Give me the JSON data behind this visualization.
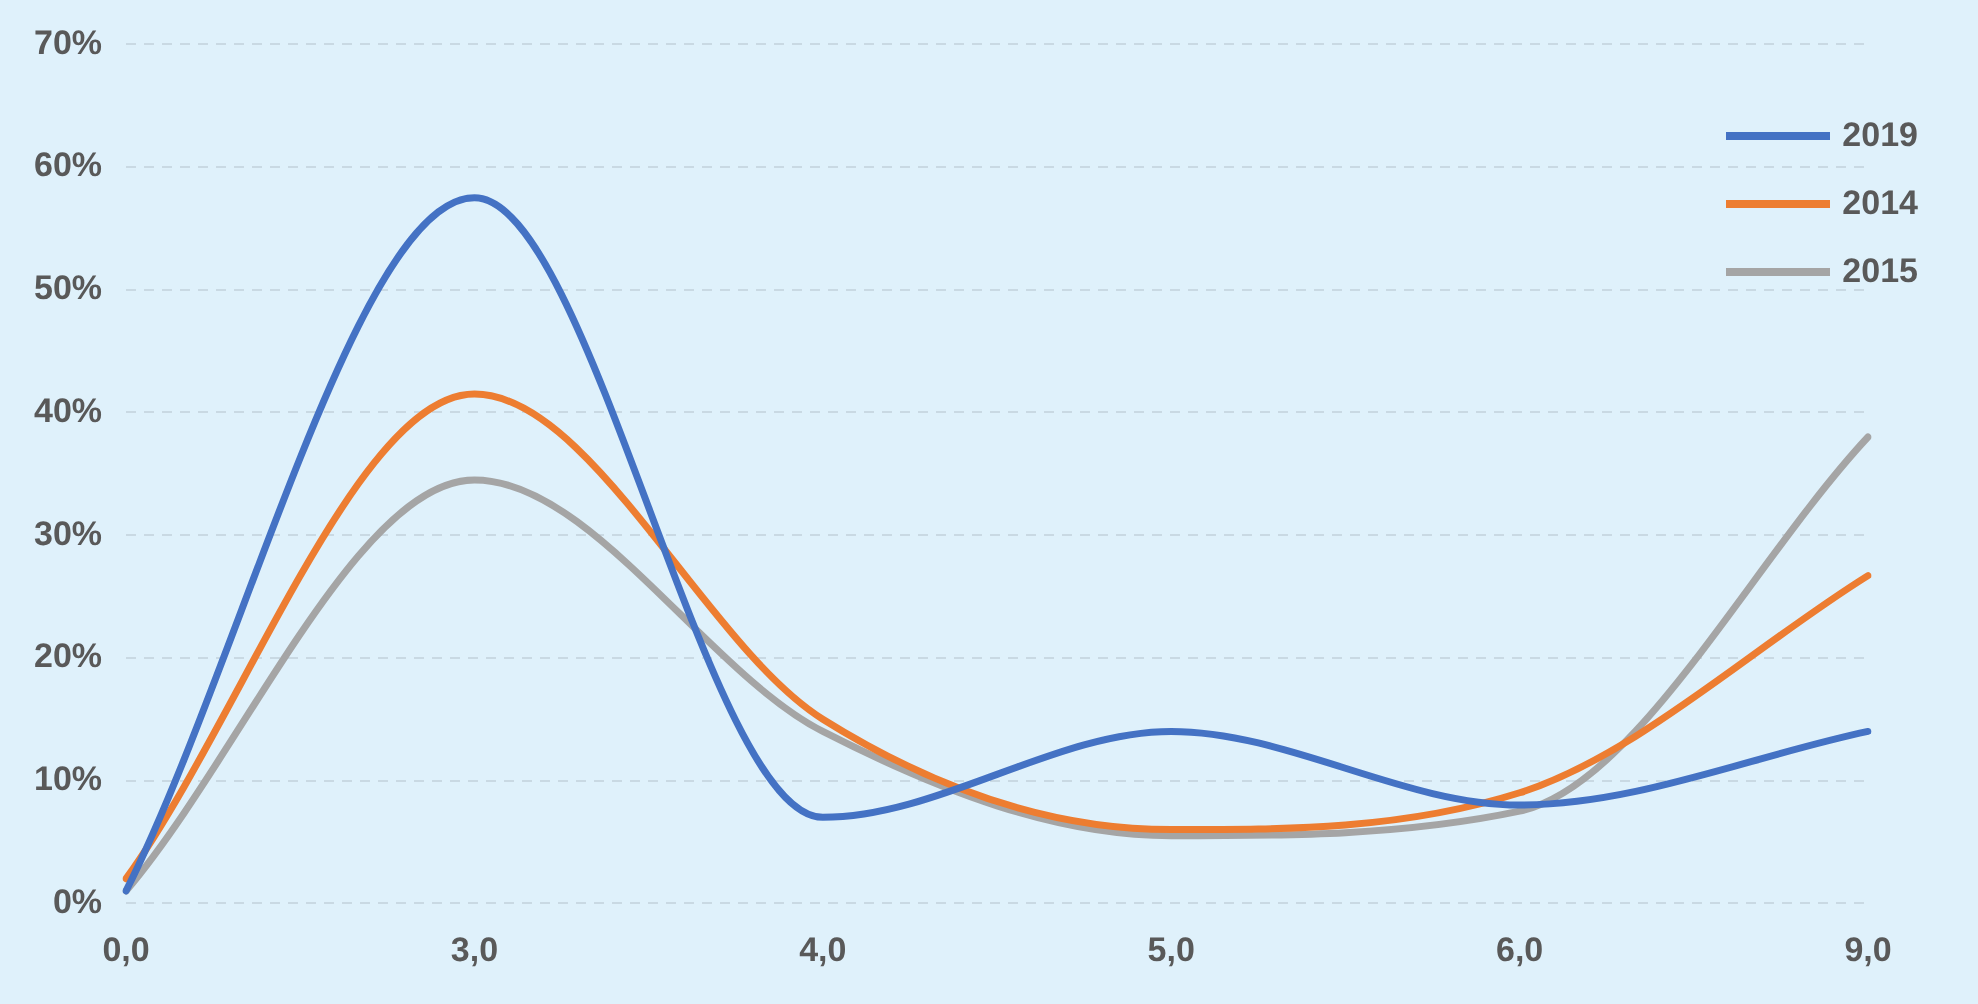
{
  "chart_data": {
    "type": "line",
    "categories": [
      "0,0",
      "3,0",
      "4,0",
      "5,0",
      "6,0",
      "9,0"
    ],
    "series": [
      {
        "name": "2019",
        "color": "#4472c4",
        "values": [
          1,
          57.5,
          7,
          14,
          8,
          14
        ]
      },
      {
        "name": "2014",
        "color": "#ed7d31",
        "values": [
          2,
          41.5,
          15,
          6,
          9,
          26.7
        ]
      },
      {
        "name": "2015",
        "color": "#a5a5a5",
        "values": [
          1,
          34.5,
          14,
          5.5,
          7.5,
          38
        ]
      }
    ],
    "ylim": [
      0,
      70
    ],
    "yticks": [
      {
        "value": 0,
        "label": "0%"
      },
      {
        "value": 10,
        "label": "10%"
      },
      {
        "value": 20,
        "label": "20%"
      },
      {
        "value": 30,
        "label": "30%"
      },
      {
        "value": 40,
        "label": "40%"
      },
      {
        "value": 50,
        "label": "50%"
      },
      {
        "value": 60,
        "label": "60%"
      },
      {
        "value": 70,
        "label": "70%"
      }
    ],
    "grid": "y",
    "legend": "top right",
    "marker": "none",
    "line_style": "solid"
  }
}
